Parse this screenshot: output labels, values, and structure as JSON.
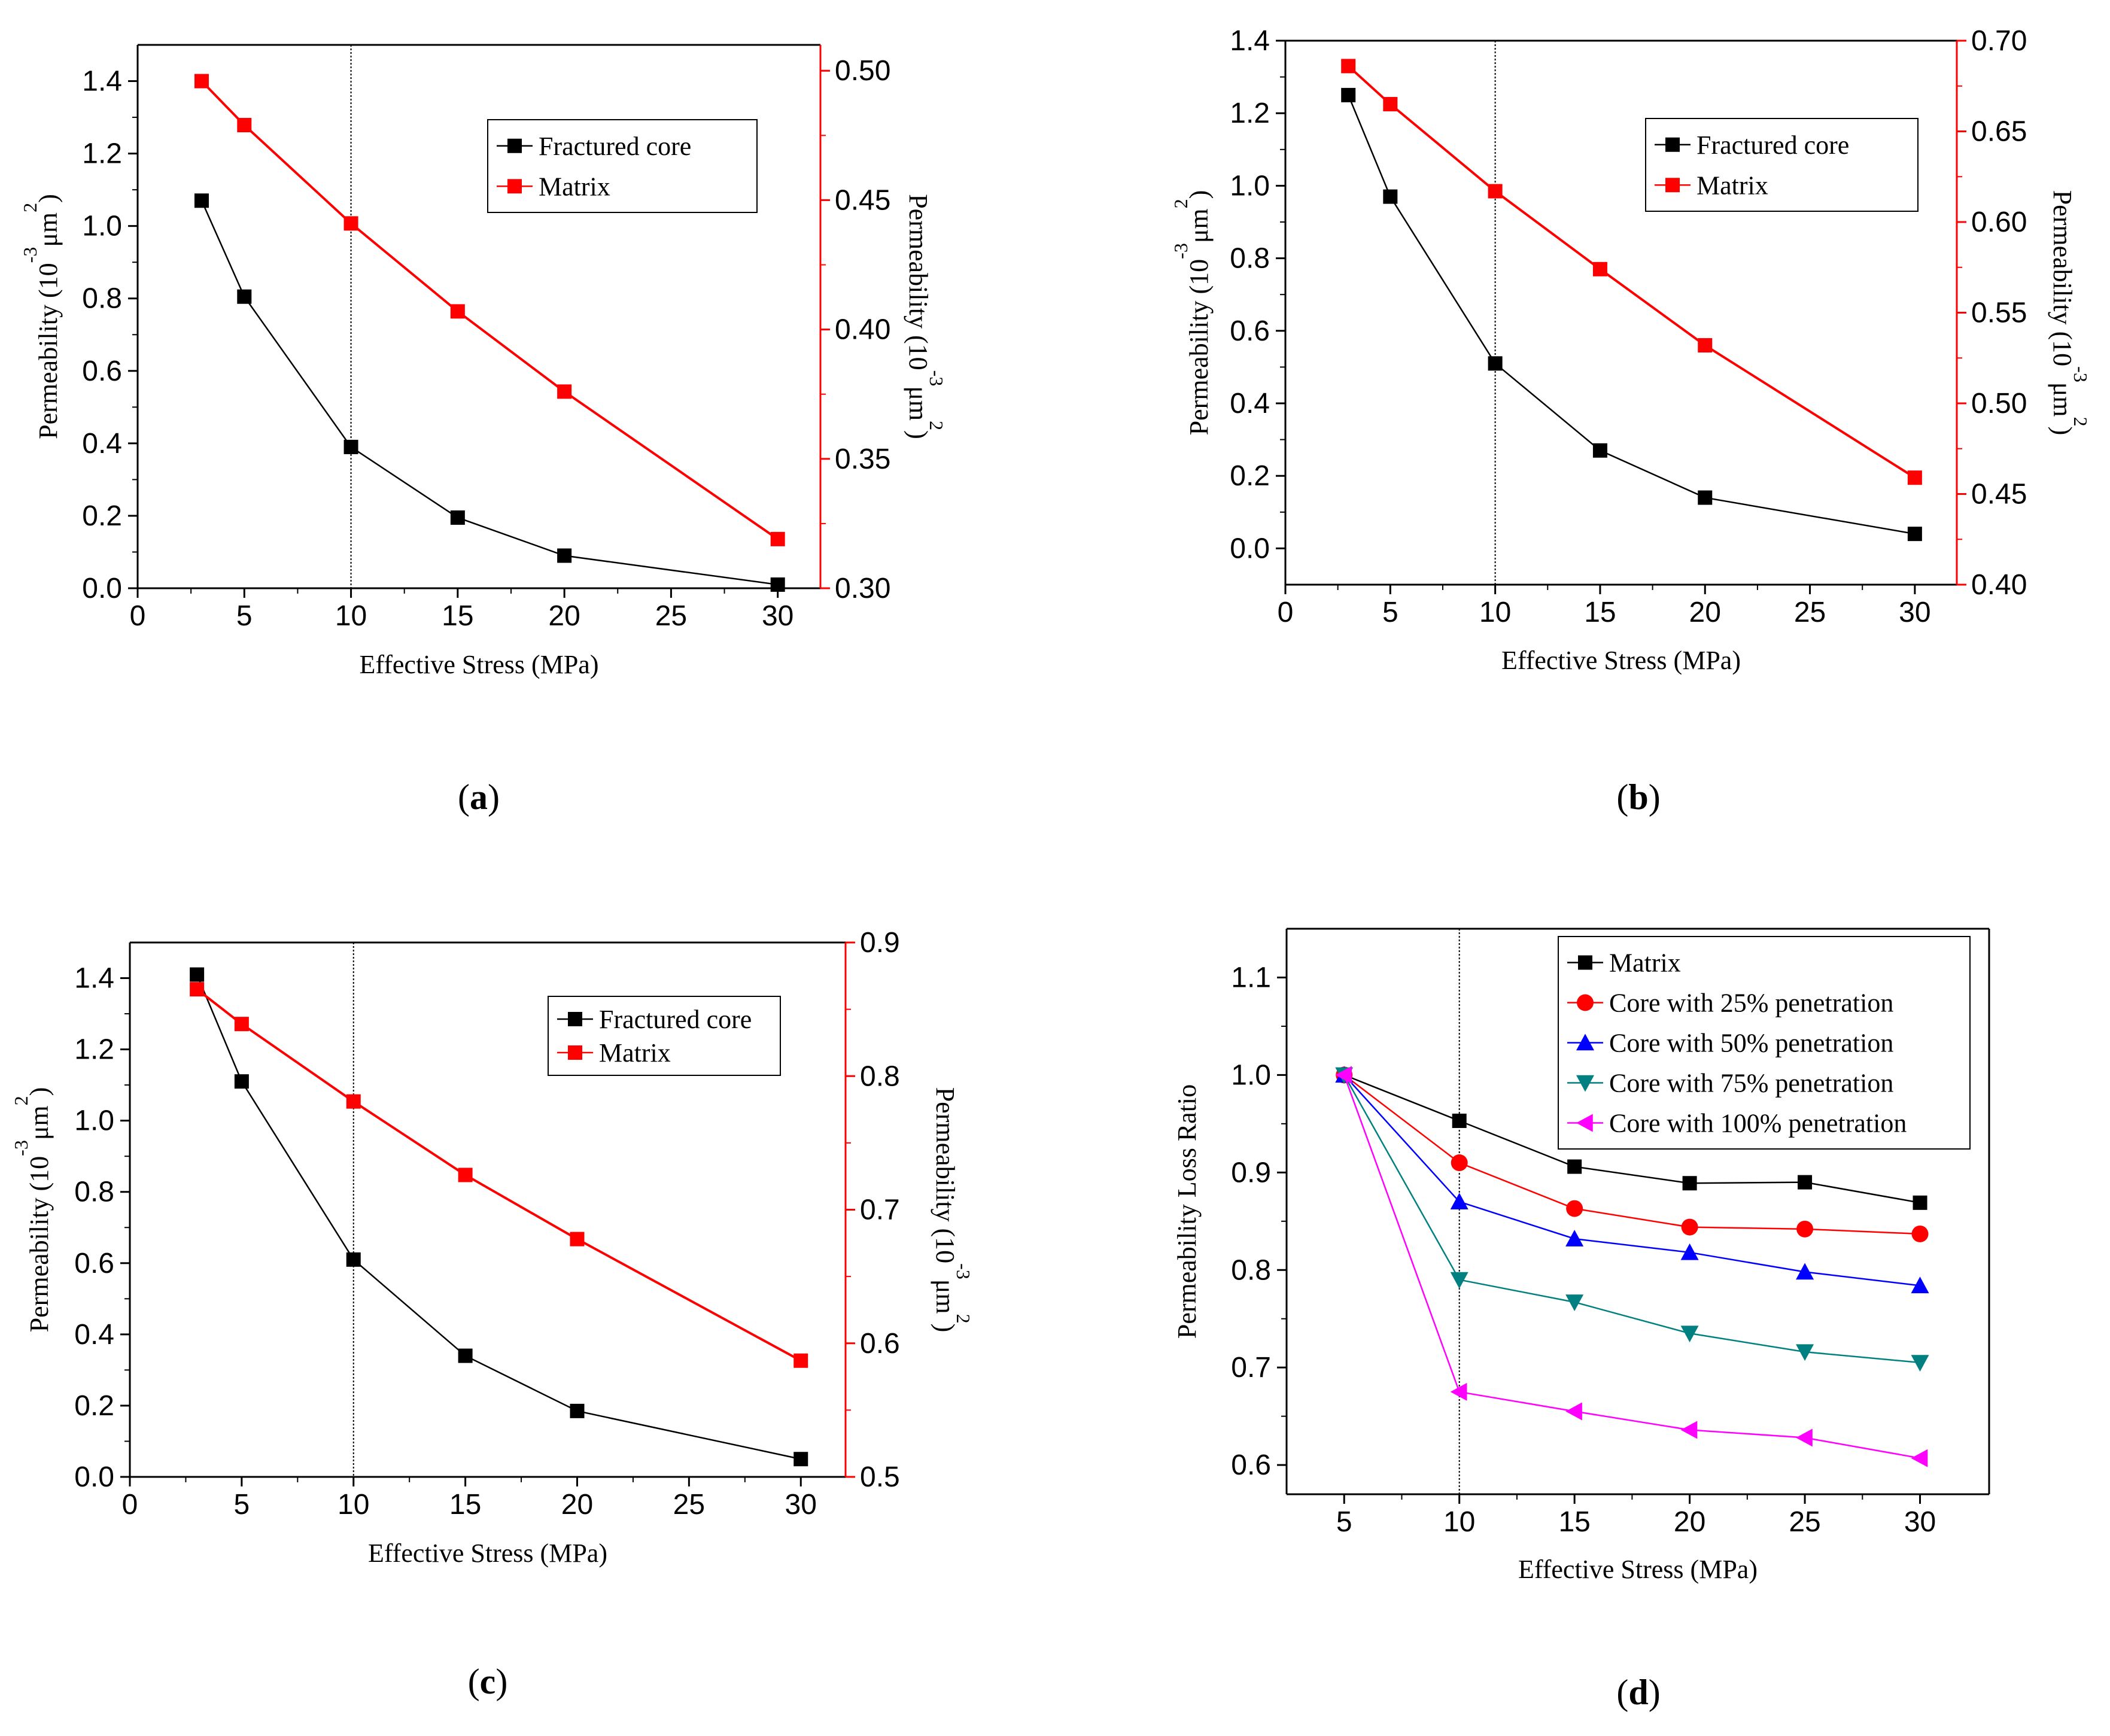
{
  "colors": {
    "black": "#000000",
    "red": "#ff0000",
    "blue": "#0000ff",
    "teal": "#008080",
    "magenta": "#ff00ff"
  },
  "chart_data": [
    {
      "panel": "(a)",
      "type": "line",
      "x_values": [
        3,
        5,
        10,
        15,
        20,
        30
      ],
      "xlim": [
        0,
        32
      ],
      "xticks": [
        0,
        5,
        10,
        15,
        20,
        25,
        30
      ],
      "xlabel": "Effective Stress (MPa)",
      "ylabel_left": "Permeability (10-3μm2)",
      "ylabel_right": "Permeability (10-3μm2)",
      "ylim_left": [
        0,
        1.5
      ],
      "yticks_left": [
        "0.0",
        "0.2",
        "0.4",
        "0.6",
        "0.8",
        "1.0",
        "1.2",
        "1.4"
      ],
      "ylim_right": [
        0.3,
        0.51
      ],
      "yticks_right": [
        "0.30",
        "0.35",
        "0.40",
        "0.45",
        "0.50"
      ],
      "reference_line_x": 10,
      "series": [
        {
          "name": "Fractured core",
          "axis": "left",
          "color": "#000000",
          "values": [
            1.07,
            0.805,
            0.39,
            0.195,
            0.09,
            0.01
          ]
        },
        {
          "name": "Matrix",
          "axis": "right",
          "color": "#ff0000",
          "values": [
            0.496,
            0.479,
            0.441,
            0.407,
            0.376,
            0.319
          ]
        }
      ]
    },
    {
      "panel": "(b)",
      "type": "line",
      "x_values": [
        3,
        5,
        10,
        15,
        20,
        30
      ],
      "xlim": [
        0,
        32
      ],
      "xticks": [
        0,
        5,
        10,
        15,
        20,
        25,
        30
      ],
      "xlabel": "Effective Stress (MPa)",
      "ylabel_left": "Permeability (10-3μm2)",
      "ylabel_right": "Permeability (10-3μm2)",
      "ylim_left": [
        -0.1,
        1.4
      ],
      "yticks_left": [
        "0.0",
        "0.2",
        "0.4",
        "0.6",
        "0.8",
        "1.0",
        "1.2",
        "1.4"
      ],
      "ylim_right": [
        0.4,
        0.7
      ],
      "yticks_right": [
        "0.40",
        "0.45",
        "0.50",
        "0.55",
        "0.60",
        "0.65",
        "0.70"
      ],
      "reference_line_x": 10,
      "series": [
        {
          "name": "Fractured core",
          "axis": "left",
          "color": "#000000",
          "values": [
            1.25,
            0.97,
            0.51,
            0.27,
            0.14,
            0.04
          ]
        },
        {
          "name": "Matrix",
          "axis": "right",
          "color": "#ff0000",
          "values": [
            0.686,
            0.665,
            0.617,
            0.574,
            0.532,
            0.459
          ]
        }
      ]
    },
    {
      "panel": "(c)",
      "type": "line",
      "x_values": [
        3,
        5,
        10,
        15,
        20,
        30
      ],
      "xlim": [
        0,
        32
      ],
      "xticks": [
        0,
        5,
        10,
        15,
        20,
        25,
        30
      ],
      "xlabel": "Effective Stress (MPa)",
      "ylabel_left": "Permeability (10-3μm2)",
      "ylabel_right": "Permeability (10-3μm2)",
      "ylim_left": [
        0,
        1.5
      ],
      "yticks_left": [
        "0.0",
        "0.2",
        "0.4",
        "0.6",
        "0.8",
        "1.0",
        "1.2",
        "1.4"
      ],
      "ylim_right": [
        0.5,
        0.9
      ],
      "yticks_right": [
        "0.5",
        "0.6",
        "0.7",
        "0.8",
        "0.9"
      ],
      "reference_line_x": 10,
      "series": [
        {
          "name": "Fractured core",
          "axis": "left",
          "color": "#000000",
          "values": [
            1.41,
            1.11,
            0.61,
            0.34,
            0.185,
            0.05
          ]
        },
        {
          "name": "Matrix",
          "axis": "right",
          "color": "#ff0000",
          "values": [
            0.865,
            0.839,
            0.781,
            0.726,
            0.678,
            0.587
          ]
        }
      ]
    },
    {
      "panel": "(d)",
      "type": "line",
      "x_values": [
        5,
        10,
        15,
        20,
        25,
        30
      ],
      "xlim": [
        2.5,
        33
      ],
      "xticks": [
        5,
        10,
        15,
        20,
        25,
        30
      ],
      "xlabel": "Effective Stress (MPa)",
      "ylabel": "Permeability Loss Ratio",
      "ylim": [
        0.57,
        1.15
      ],
      "yticks": [
        "0.6",
        "0.7",
        "0.8",
        "0.9",
        "1.0",
        "1.1"
      ],
      "reference_line_x": 10,
      "series": [
        {
          "name": "Matrix",
          "color": "#000000",
          "marker": "square",
          "values": [
            1.0,
            0.953,
            0.906,
            0.889,
            0.89,
            0.869
          ]
        },
        {
          "name": "Core with 25% penetration",
          "color": "#ff0000",
          "marker": "circle",
          "values": [
            1.0,
            0.91,
            0.863,
            0.844,
            0.842,
            0.837
          ]
        },
        {
          "name": "Core with 50% penetration",
          "color": "#0000ff",
          "marker": "triangle-up",
          "values": [
            1.0,
            0.87,
            0.832,
            0.818,
            0.798,
            0.784
          ]
        },
        {
          "name": "Core with 75% penetration",
          "color": "#008080",
          "marker": "triangle-down",
          "values": [
            1.0,
            0.79,
            0.767,
            0.735,
            0.716,
            0.705
          ]
        },
        {
          "name": "Core with 100% penetration",
          "color": "#ff00ff",
          "marker": "triangle-left",
          "values": [
            1.0,
            0.675,
            0.655,
            0.636,
            0.628,
            0.607
          ]
        }
      ]
    }
  ]
}
